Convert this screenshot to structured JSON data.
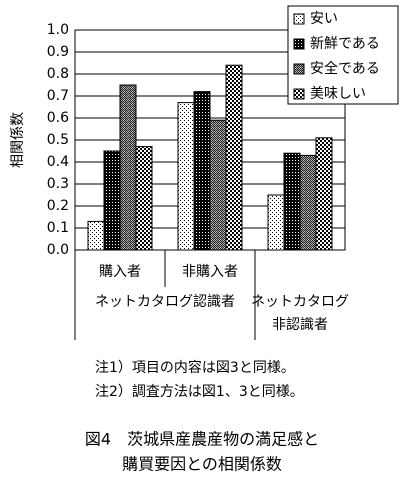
{
  "chart_data": {
    "type": "bar",
    "ylabel": "相関係数",
    "categories": [
      "購入者",
      "非購入者",
      null
    ],
    "category_groups": [
      {
        "name": [
          "ネットカタログ認識者"
        ],
        "size": 2
      },
      {
        "name": [
          "ネットカタログ",
          "非認識者"
        ],
        "size": 1
      }
    ],
    "series": [
      {
        "name": "安い",
        "color": "#000000",
        "values": [
          0.13,
          0.67,
          0.25
        ]
      },
      {
        "name": "新鮮である",
        "color": "#000000",
        "values": [
          0.45,
          0.72,
          0.44
        ]
      },
      {
        "name": "安全である",
        "color": "#000000",
        "values": [
          0.75,
          0.59,
          0.43
        ]
      },
      {
        "name": "美味しい",
        "color": "#000000",
        "values": [
          0.47,
          0.84,
          0.51
        ]
      }
    ],
    "ylim": [
      0,
      1
    ],
    "yticks": [
      {
        "value": 0,
        "label": "0.0"
      },
      0.1,
      0.2,
      0.3,
      0.4,
      0.5,
      0.6,
      0.7,
      0.8,
      0.9,
      {
        "value": 1,
        "label": "1.0"
      }
    ],
    "grid": true,
    "legend": "top-right",
    "notes": [
      "注1）項目の内容は図3と同様。",
      "注2）調査方法は図1、3と同様。"
    ],
    "caption": [
      "図4　茨城県産農産物の満足感と",
      "購買要因との相関係数"
    ]
  }
}
